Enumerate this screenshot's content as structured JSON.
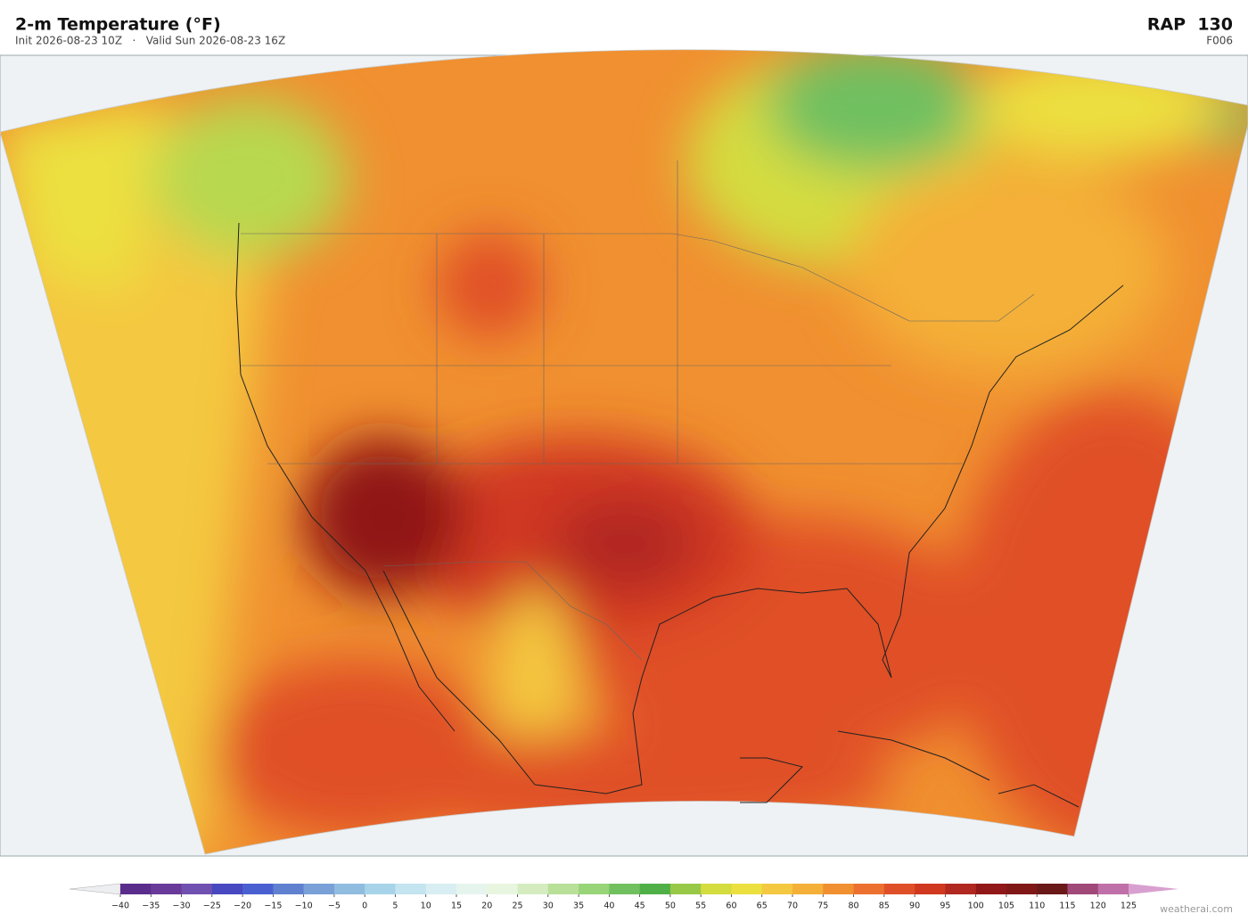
{
  "header": {
    "title": "2-m Temperature  (°F)",
    "subtitle": "Init 2026-08-23 10Z   ·   Valid Sun 2026-08-23 16Z",
    "model": "RAP  130",
    "forecast_hour": "F006"
  },
  "colorbar": {
    "range": [
      -40,
      125
    ],
    "ticks": [
      {
        "value": -40,
        "label": "−40"
      },
      {
        "value": -35,
        "label": "−35"
      },
      {
        "value": -30,
        "label": "−30"
      },
      {
        "value": -25,
        "label": "−25"
      },
      {
        "value": -20,
        "label": "−20"
      },
      {
        "value": -15,
        "label": "−15"
      },
      {
        "value": -10,
        "label": "−10"
      },
      {
        "value": -5,
        "label": "−5"
      },
      0,
      5,
      10,
      15,
      20,
      25,
      30,
      35,
      40,
      45,
      50,
      55,
      60,
      65,
      70,
      75,
      80,
      85,
      90,
      95,
      100,
      105,
      110,
      115,
      120,
      125
    ],
    "colors": [
      "#5a2d8c",
      "#6a3a9a",
      "#7050b0",
      "#4848c0",
      "#4a60d0",
      "#6080d0",
      "#7aa0d8",
      "#90bce0",
      "#a8d4ea",
      "#c4e4f0",
      "#d8eef2",
      "#e6f4ee",
      "#e8f6e0",
      "#d4ecc0",
      "#b8e098",
      "#98d478",
      "#70c060",
      "#50b048",
      "#98c848",
      "#d4dc40",
      "#ece040",
      "#f4c840",
      "#f4b038",
      "#f09030",
      "#ec7030",
      "#e05028",
      "#d03820",
      "#b02820",
      "#901818",
      "#801818",
      "#6a1818",
      "#a04878",
      "#c070a8"
    ],
    "under_color": "#eceef0",
    "over_color": "#d8a0d0"
  },
  "footer": {
    "credit": "weatherai.com"
  }
}
